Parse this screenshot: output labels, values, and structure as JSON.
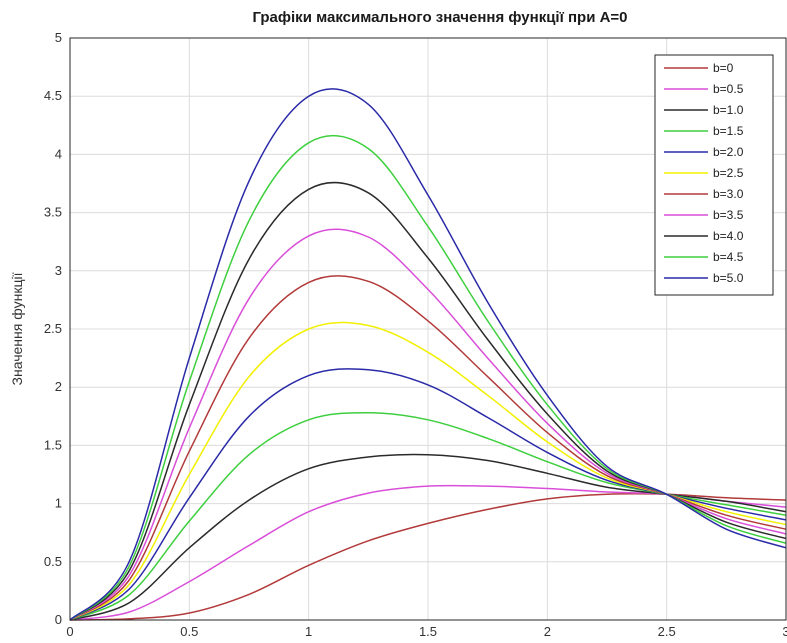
{
  "chart_data": {
    "type": "line",
    "title": "Графіки максимального значення функції при A=0",
    "xlabel": "",
    "ylabel": "Значення функції",
    "xlim": [
      0,
      3
    ],
    "ylim": [
      0,
      5
    ],
    "xticks": [
      0,
      0.5,
      1,
      1.5,
      2,
      2.5,
      3
    ],
    "xtick_labels": [
      "0",
      "0.5",
      "1",
      "1.5",
      "2",
      "2.5",
      "3"
    ],
    "yticks": [
      0,
      0.5,
      1,
      1.5,
      2,
      2.5,
      3,
      3.5,
      4,
      4.5,
      5
    ],
    "ytick_labels": [
      "0",
      "0.5",
      "1",
      "1.5",
      "2",
      "2.5",
      "3",
      "3.5",
      "4",
      "4.5",
      "5"
    ],
    "grid": true,
    "legend_position": "top-right",
    "x": [
      0,
      0.25,
      0.5,
      0.75,
      1,
      1.25,
      1.5,
      1.75,
      2,
      2.25,
      2.5,
      2.75,
      3
    ],
    "series": [
      {
        "name": "b=0",
        "color": "#b23a3a",
        "values": [
          0,
          0.01,
          0.06,
          0.22,
          0.47,
          0.68,
          0.83,
          0.95,
          1.04,
          1.08,
          1.08,
          1.05,
          1.03
        ]
      },
      {
        "name": "b=0.5",
        "color": "#d94fd9",
        "values": [
          0,
          0.07,
          0.33,
          0.64,
          0.93,
          1.09,
          1.15,
          1.15,
          1.13,
          1.1,
          1.08,
          1.02,
          0.97
        ]
      },
      {
        "name": "b=1.0",
        "color": "#2b2b2b",
        "values": [
          0,
          0.15,
          0.62,
          1.03,
          1.3,
          1.4,
          1.42,
          1.37,
          1.26,
          1.14,
          1.08,
          1.02,
          0.93
        ]
      },
      {
        "name": "b=1.5",
        "color": "#3ecf3e",
        "values": [
          0,
          0.22,
          0.85,
          1.42,
          1.72,
          1.78,
          1.72,
          1.56,
          1.36,
          1.18,
          1.08,
          0.99,
          0.9
        ]
      },
      {
        "name": "b=2.0",
        "color": "#2a2aa8",
        "values": [
          0,
          0.27,
          1.05,
          1.75,
          2.1,
          2.15,
          2.02,
          1.74,
          1.44,
          1.2,
          1.08,
          0.96,
          0.86
        ]
      },
      {
        "name": "b=2.5",
        "color": "#f2f000",
        "values": [
          0,
          0.31,
          1.25,
          2.09,
          2.5,
          2.53,
          2.3,
          1.93,
          1.53,
          1.22,
          1.08,
          0.93,
          0.82
        ]
      },
      {
        "name": "b=3.0",
        "color": "#b23a3a",
        "values": [
          0,
          0.35,
          1.45,
          2.42,
          2.9,
          2.91,
          2.57,
          2.09,
          1.61,
          1.24,
          1.08,
          0.9,
          0.78
        ]
      },
      {
        "name": "b=3.5",
        "color": "#d94fd9",
        "values": [
          0,
          0.39,
          1.65,
          2.76,
          3.3,
          3.29,
          2.84,
          2.25,
          1.69,
          1.26,
          1.08,
          0.87,
          0.74
        ]
      },
      {
        "name": "b=4.0",
        "color": "#2b2b2b",
        "values": [
          0,
          0.43,
          1.85,
          3.1,
          3.7,
          3.67,
          3.11,
          2.41,
          1.77,
          1.28,
          1.08,
          0.84,
          0.7
        ]
      },
      {
        "name": "b=4.5",
        "color": "#3ecf3e",
        "values": [
          0,
          0.47,
          2.05,
          3.43,
          4.1,
          4.05,
          3.38,
          2.57,
          1.85,
          1.3,
          1.08,
          0.81,
          0.66
        ]
      },
      {
        "name": "b=5.0",
        "color": "#2a2aa8",
        "values": [
          0,
          0.51,
          2.25,
          3.77,
          4.5,
          4.43,
          3.65,
          2.73,
          1.93,
          1.32,
          1.08,
          0.78,
          0.62
        ]
      }
    ]
  }
}
